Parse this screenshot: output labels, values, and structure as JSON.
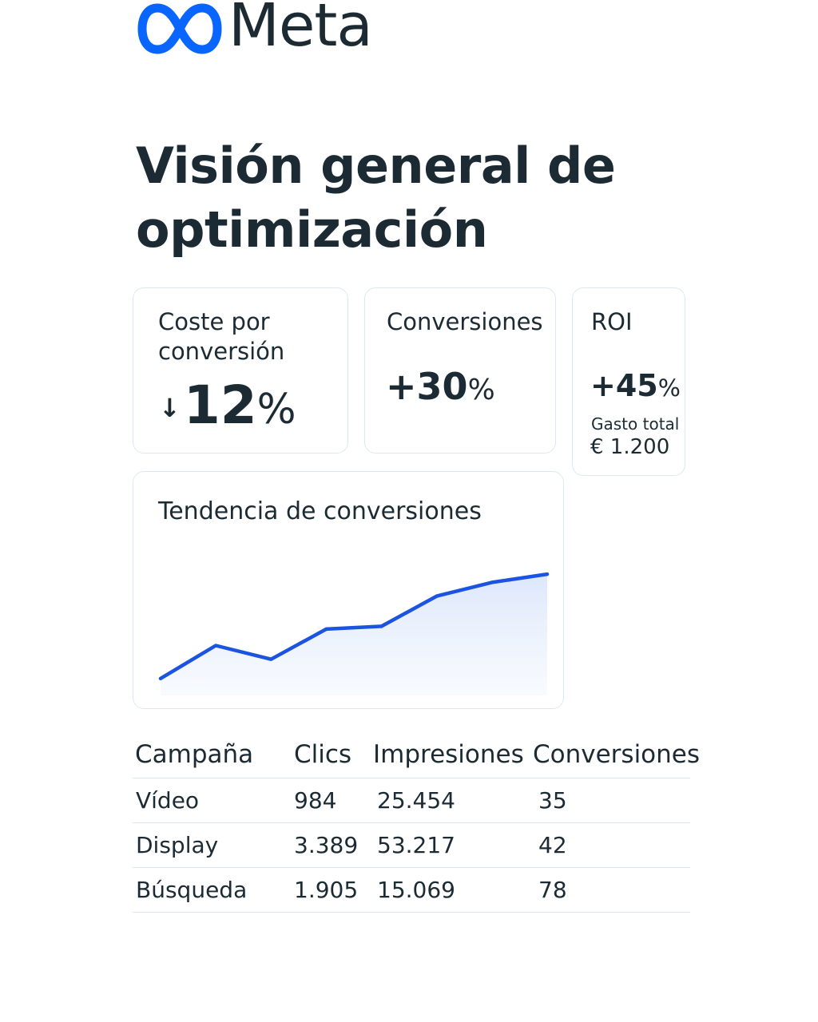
{
  "brand": {
    "name": "Meta",
    "logo_icon": "meta-infinity-icon",
    "logo_color": "#0866ff"
  },
  "page": {
    "title": "Visión general de optimización"
  },
  "cards": {
    "cost_per_conversion": {
      "label": "Coste por conversión",
      "direction_icon": "arrow-down-icon",
      "arrow": "↓",
      "value": "12",
      "unit": "%"
    },
    "conversions": {
      "label": "Conversiones",
      "value": "+30",
      "unit": "%"
    },
    "roi": {
      "label": "ROI",
      "value": "+45",
      "unit": "%",
      "sub_label": "Gasto total",
      "sub_value": "€ 1.200"
    },
    "trend": {
      "label": "Tendencia de conversiones"
    }
  },
  "chart_data": {
    "type": "area",
    "title": "Tendencia de conversiones",
    "x": [
      1,
      2,
      3,
      4,
      5,
      6,
      7,
      8
    ],
    "values": [
      5,
      17,
      12,
      23,
      24,
      35,
      40,
      43
    ],
    "ylim": [
      0,
      50
    ],
    "grid": false,
    "legend": "none",
    "line_color": "#1b54e0",
    "fill_color": "#e6eefb"
  },
  "table": {
    "headers": [
      "Campaña",
      "Clics",
      "Impresiones",
      "Conversiones"
    ],
    "rows": [
      [
        "Vídeo",
        "984",
        "25.454",
        "35"
      ],
      [
        "Display",
        "3.389",
        "53.217",
        "42"
      ],
      [
        "Búsqueda",
        "1.905",
        "15.069",
        "78"
      ]
    ]
  }
}
